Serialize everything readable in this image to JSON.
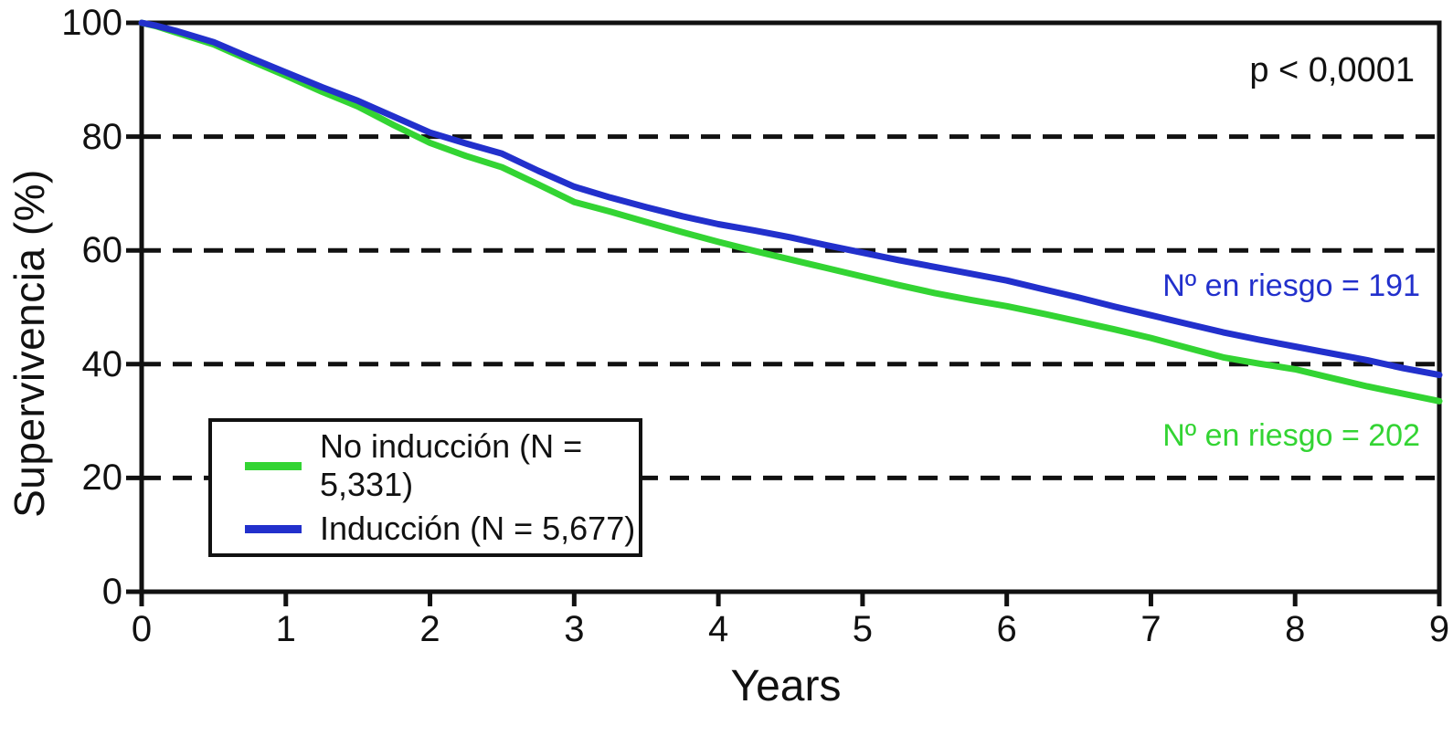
{
  "chart_data": {
    "type": "line",
    "title": "",
    "xlabel": "Years",
    "ylabel": "Supervivencia (%)",
    "p_value": "p < 0,0001",
    "xlim": [
      0,
      9
    ],
    "ylim": [
      0,
      100
    ],
    "x_ticks": [
      0,
      1,
      2,
      3,
      4,
      5,
      6,
      7,
      8,
      9
    ],
    "y_ticks": [
      0,
      20,
      40,
      60,
      80,
      100
    ],
    "gridlines_y": [
      20,
      40,
      60,
      80
    ],
    "grid_style": "dashed",
    "legend_position": "lower-left",
    "axis_color": "#111111",
    "x": [
      0,
      0.1,
      0.25,
      0.5,
      0.75,
      1,
      1.25,
      1.5,
      1.75,
      2,
      2.25,
      2.5,
      2.75,
      3,
      3.25,
      3.5,
      3.75,
      4,
      4.25,
      4.5,
      4.75,
      5,
      5.25,
      5.5,
      5.75,
      6,
      6.25,
      6.5,
      6.75,
      7,
      7.25,
      7.5,
      7.75,
      8,
      8.25,
      8.5,
      8.75,
      9
    ],
    "series": [
      {
        "name": "No inducción (N = 5,331)",
        "color": "#33d433",
        "at_risk_label": "Nº en riesgo = 202",
        "values": [
          100,
          99.4,
          98.2,
          96.2,
          93.4,
          90.7,
          87.9,
          85.3,
          82.0,
          78.9,
          76.6,
          74.6,
          71.6,
          68.5,
          66.8,
          65.0,
          63.2,
          61.5,
          59.9,
          58.4,
          56.9,
          55.4,
          53.9,
          52.5,
          51.3,
          50.2,
          48.9,
          47.5,
          46.1,
          44.6,
          42.9,
          41.2,
          40.1,
          39.1,
          37.6,
          36.1,
          34.8,
          33.5
        ]
      },
      {
        "name": "Inducción (N = 5,677)",
        "color": "#2230cc",
        "at_risk_label": "Nº en riesgo = 191",
        "values": [
          100,
          99.5,
          98.5,
          96.6,
          93.9,
          91.3,
          88.7,
          86.3,
          83.5,
          80.7,
          78.8,
          77.0,
          74.0,
          71.2,
          69.3,
          67.6,
          66.0,
          64.6,
          63.5,
          62.3,
          60.9,
          59.6,
          58.3,
          57.1,
          55.9,
          54.7,
          53.2,
          51.7,
          50.1,
          48.6,
          47.1,
          45.6,
          44.3,
          43.1,
          41.9,
          40.7,
          39.3,
          38.1
        ]
      }
    ]
  }
}
